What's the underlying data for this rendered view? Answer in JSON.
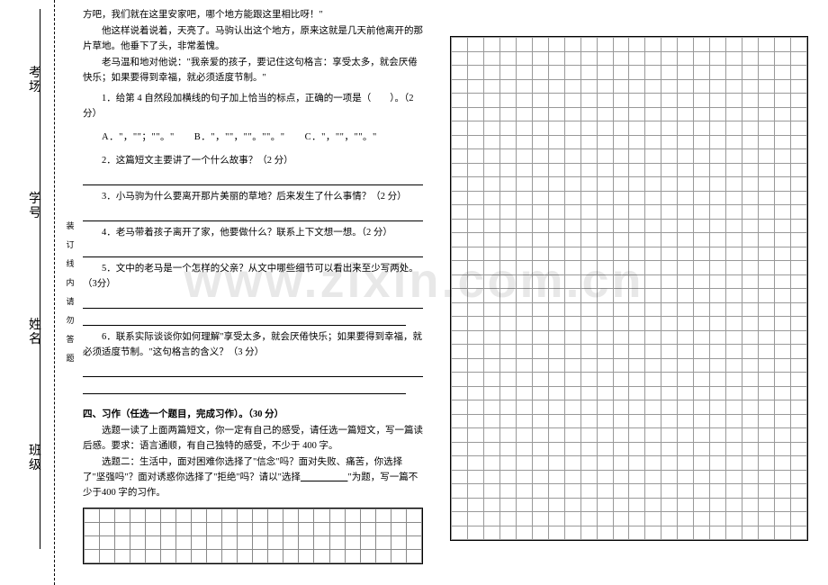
{
  "watermark": "www.zixin.com.cn",
  "side_labels": [
    "考场",
    "学号",
    "姓名",
    "班级"
  ],
  "binding": [
    "装",
    "订",
    "线",
    "内",
    "请",
    "勿",
    "答",
    "题"
  ],
  "passage": {
    "l1": "方吧，我们就在这里安家吧，哪个地方能跟这里相比呀！\"",
    "l2": "他这样说着说着，天亮了。马驹认出这个地方，原来这就是几天前他离开的那片草地。他垂下了头，非常羞愧。",
    "l3": "老马温和地对他说：\"我亲爱的孩子，要记住这句格言：享受太多，就会厌倦快乐；如果要得到幸福，就必须适度节制。\""
  },
  "q1": {
    "text": "1．给第 4 自然段加横线的句子加上恰当的标点，正确的一项是（　　）。（2 分）",
    "choices": "A．\"，\"\"；\"\"。\"　　B．\"，\"\"，\"\"。\"\"。\"　　C．\"，\"\"，\"\"。\""
  },
  "q2": "2．这篇短文主要讲了一个什么故事？（2 分）",
  "q3": "3．小马驹为什么要离开那片美丽的草地？后来发生了什么事情？（2 分）",
  "q4": "4．老马带着孩子离开了家，他要做什么？联系上下文想一想。（2 分）",
  "q5": "5．文中的老马是一个怎样的父亲？从文中哪些细节可以看出来至少写两处。（3分）",
  "q6": "6．联系实际谈谈你如何理解\"享受太多，就会厌倦快乐；如果要得到幸福，就必须适度节制。\"这句格言的含义？（3 分）",
  "section4": {
    "title": "四、习作（任选一个题目，完成习作）。（30 分）",
    "p1": "选题一读了上面两篇短文，你一定有自己的感受，请任选一篇短文，写一篇读后感。要求：语言通顺，有自己独特的感受，不少于 400 字。",
    "p2a": "选题二：生活中，面对困难你选择了\"信念\"吗？面对失败、痛苦，你选择了\"坚强吗\"？面对诱惑你选择了\"拒绝\"吗？请以\"选择",
    "p2b": "\"为题，写一篇不少于400 字的习作。"
  },
  "left_grid": {
    "rows": 4,
    "cols": 22,
    "cell_border": "#888"
  },
  "right_grid": {
    "rows": 36,
    "cols": 22,
    "cell_border": "#999"
  }
}
